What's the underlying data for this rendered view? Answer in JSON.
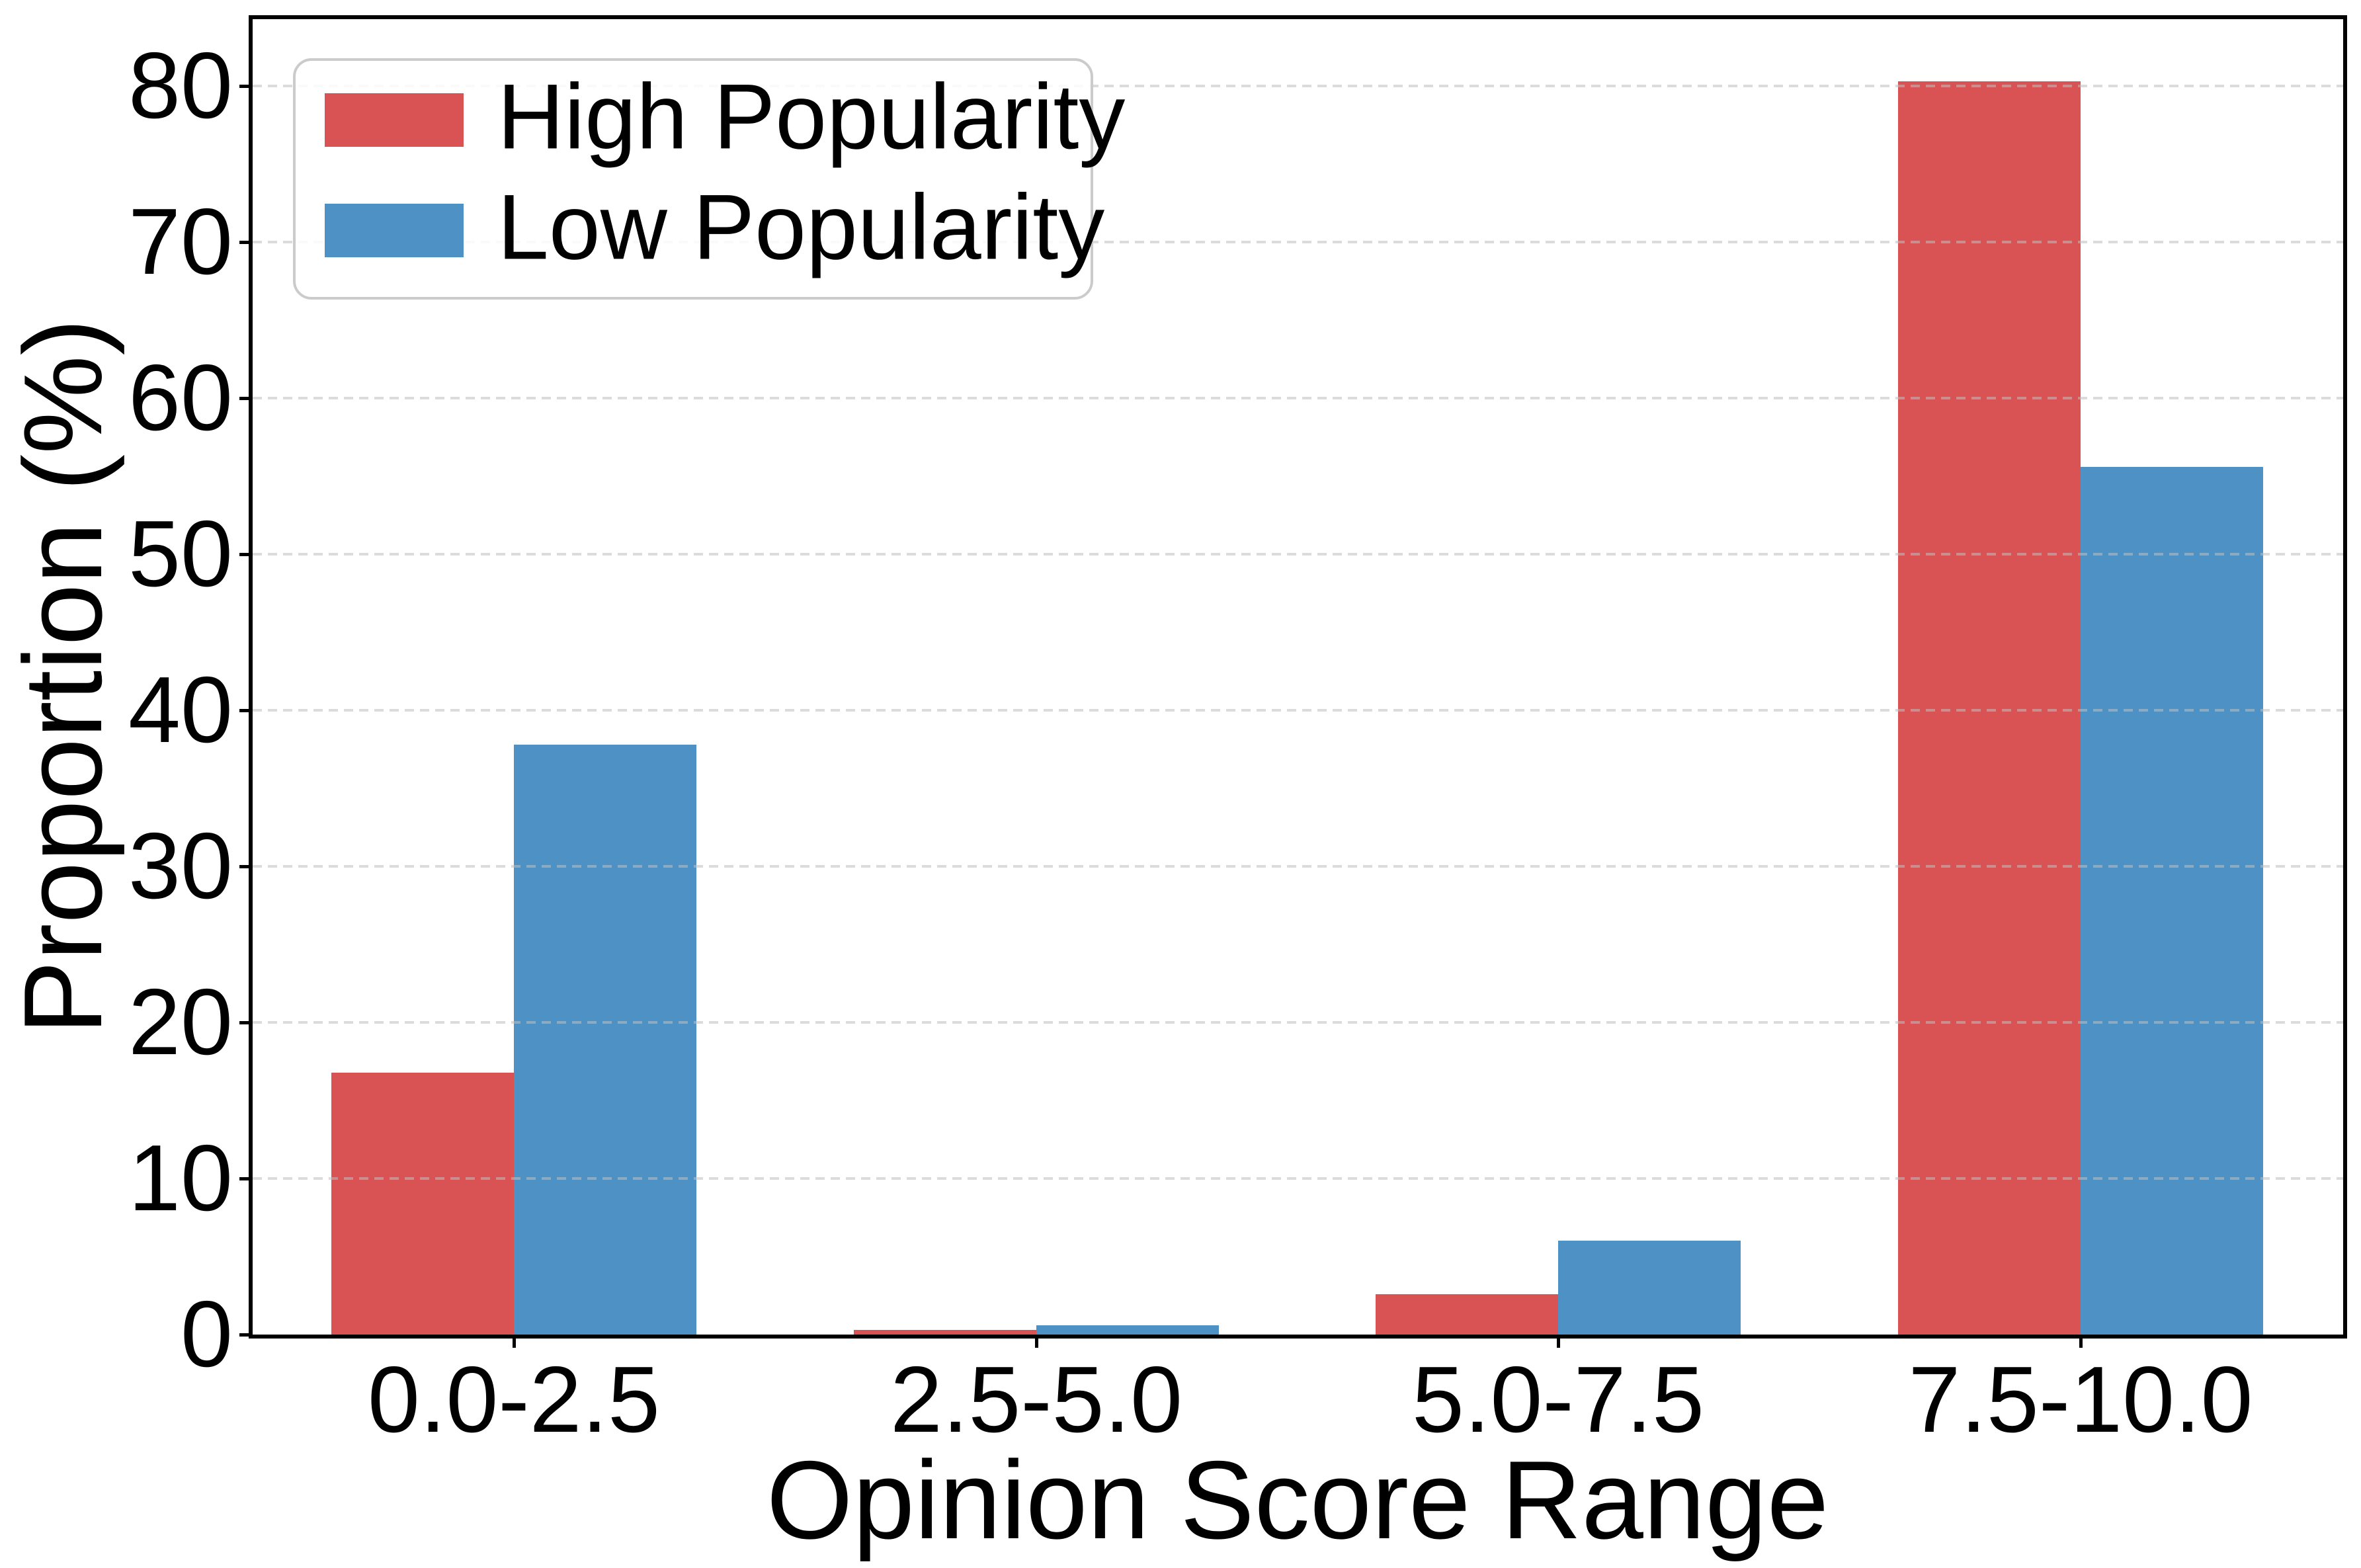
{
  "figure": {
    "xlabel": "Opinion Score Range",
    "ylabel": "Proportion (%)"
  },
  "legend": {
    "items": [
      {
        "label": "High Popularity",
        "color": "#d95354"
      },
      {
        "label": "Low Popularity",
        "color": "#4e91c4"
      }
    ]
  },
  "chart_data": {
    "type": "bar",
    "categories": [
      "0.0-2.5",
      "2.5-5.0",
      "5.0-7.5",
      "7.5-10.0"
    ],
    "series": [
      {
        "name": "High Popularity",
        "color": "#d95354",
        "values": [
          16.8,
          0.3,
          2.6,
          80.3
        ]
      },
      {
        "name": "Low Popularity",
        "color": "#4e91c4",
        "values": [
          37.8,
          0.6,
          6.0,
          55.6
        ]
      }
    ],
    "title": "",
    "xlabel": "Opinion Score Range",
    "ylabel": "Proportion (%)",
    "ylim": [
      0,
      84.3
    ],
    "yticks": [
      0,
      10,
      20,
      30,
      40,
      50,
      60,
      70,
      80
    ],
    "grid": "horizontal-dashed",
    "grid_above_bars": true,
    "legend_position": "upper-left",
    "bar_colors": {
      "high": "#d95354",
      "low": "#4e91c4"
    }
  }
}
